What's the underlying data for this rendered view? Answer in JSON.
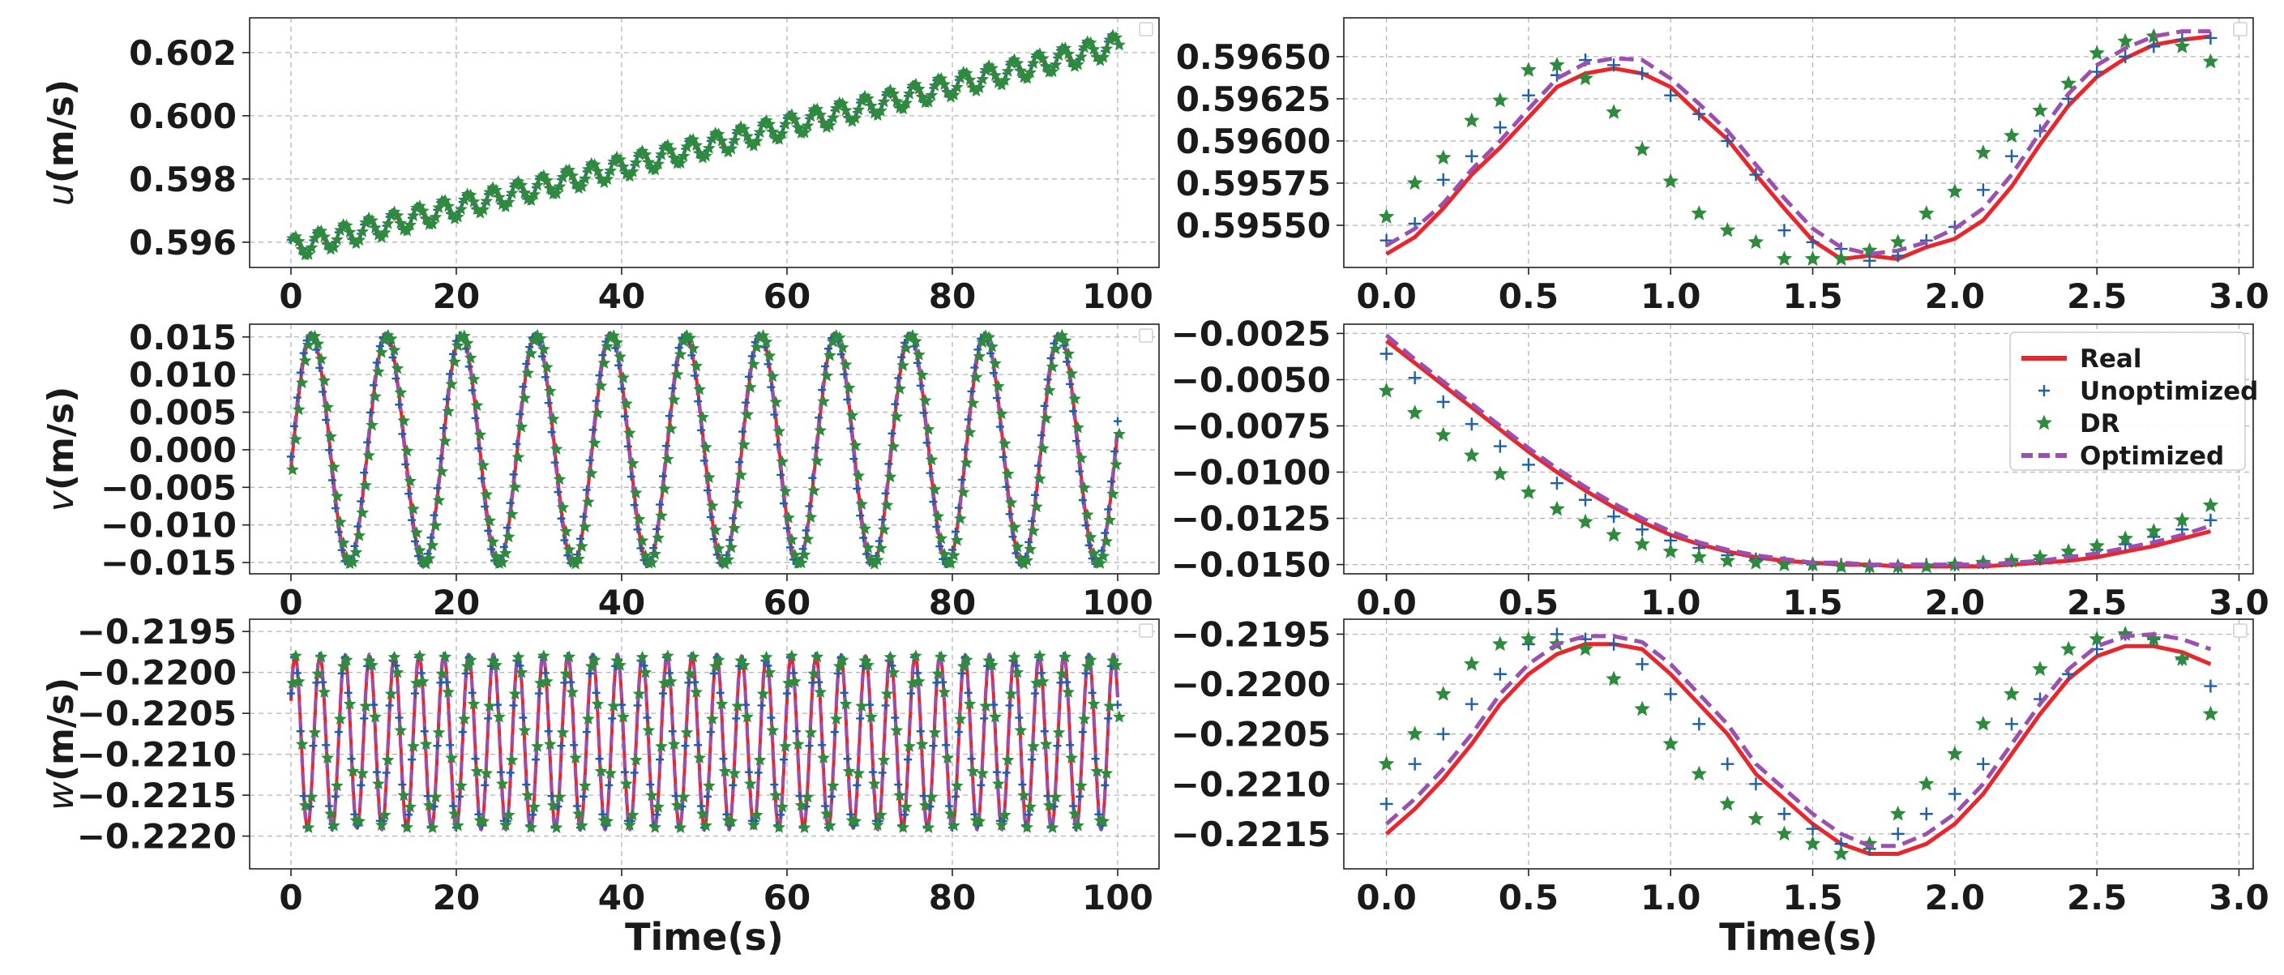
{
  "figure": {
    "xlabel_bottom": "Time(s)"
  },
  "colors": {
    "real": "#e8262c",
    "unoptimized": "#1f5fa8",
    "dr": "#2e8b3e",
    "optimized": "#9b4fb0",
    "grid": "#b5b5b5",
    "axis": "#222222"
  },
  "legend": {
    "entries": [
      "Real",
      "Unoptimized",
      "DR",
      "Optimized"
    ],
    "placement": "top-right of middle-right panel"
  },
  "chart_data": [
    {
      "id": "u_full",
      "type": "line",
      "ylabel_var": "u",
      "ylabel_unit": "(m/s)",
      "xlim": [
        -5,
        105
      ],
      "ylim": [
        0.5952,
        0.6031
      ],
      "xticks": [
        0,
        20,
        40,
        60,
        80,
        100
      ],
      "xtick_labels": [
        "0",
        "20",
        "40",
        "60",
        "80",
        "100"
      ],
      "yticks": [
        0.596,
        0.598,
        0.6,
        0.602
      ],
      "ytick_labels": [
        "0.596",
        "0.598",
        "0.600",
        "0.602"
      ],
      "signal": {
        "x_start": 0,
        "x_end": 100,
        "offset": 0.5958,
        "slope": 6.43e-05,
        "amp": 0.00035,
        "period": 3.0,
        "phase": 0.8
      },
      "series": [
        "Real",
        "Unoptimized",
        "DR",
        "Optimized"
      ]
    },
    {
      "id": "u_zoom",
      "type": "line",
      "ylabel_var": "",
      "ylabel_unit": "",
      "xlim": [
        -0.15,
        3.05
      ],
      "ylim": [
        0.59525,
        0.59673
      ],
      "xticks": [
        0.0,
        0.5,
        1.0,
        1.5,
        2.0,
        2.5,
        3.0
      ],
      "xtick_labels": [
        "0.0",
        "0.5",
        "1.0",
        "1.5",
        "2.0",
        "2.5",
        "3.0"
      ],
      "yticks": [
        0.5955,
        0.59575,
        0.596,
        0.59625,
        0.5965
      ],
      "ytick_labels": [
        "0.59550",
        "0.59575",
        "0.59600",
        "0.59625",
        "0.59650"
      ],
      "x": [
        0.0,
        0.1,
        0.2,
        0.3,
        0.4,
        0.5,
        0.6,
        0.7,
        0.8,
        0.9,
        1.0,
        1.1,
        1.2,
        1.3,
        1.4,
        1.5,
        1.6,
        1.7,
        1.8,
        1.9,
        2.0,
        2.1,
        2.2,
        2.3,
        2.4,
        2.5,
        2.6,
        2.7,
        2.8,
        2.9
      ],
      "series": [
        {
          "name": "Real",
          "values": [
            0.59533,
            0.59543,
            0.5956,
            0.5958,
            0.59596,
            0.59614,
            0.59632,
            0.5964,
            0.59643,
            0.5964,
            0.59632,
            0.59616,
            0.59601,
            0.5958,
            0.5956,
            0.59541,
            0.5953,
            0.59532,
            0.5953,
            0.59537,
            0.59542,
            0.59553,
            0.59573,
            0.59598,
            0.59621,
            0.59638,
            0.59649,
            0.59657,
            0.5966,
            0.59662
          ]
        },
        {
          "name": "Unoptimized",
          "values": [
            0.59541,
            0.59551,
            0.59577,
            0.59591,
            0.59608,
            0.59627,
            0.59639,
            0.59648,
            0.59645,
            0.5964,
            0.59627,
            0.59616,
            0.596,
            0.5958,
            0.59547,
            0.5954,
            0.59536,
            0.59529,
            0.59532,
            0.59541,
            0.59549,
            0.59571,
            0.59591,
            0.59606,
            0.59625,
            0.59641,
            0.5965,
            0.59656,
            0.5966,
            0.59661
          ]
        },
        {
          "name": "DR",
          "values": [
            0.59555,
            0.59575,
            0.5959,
            0.59612,
            0.59624,
            0.59642,
            0.59645,
            0.59637,
            0.59617,
            0.59595,
            0.59576,
            0.59557,
            0.59547,
            0.5954,
            0.5953,
            0.5953,
            0.5953,
            0.59535,
            0.5954,
            0.59557,
            0.5957,
            0.59593,
            0.59603,
            0.59618,
            0.59634,
            0.59652,
            0.59659,
            0.59662,
            0.59656,
            0.59647
          ]
        },
        {
          "name": "Optimized",
          "values": [
            0.59538,
            0.59548,
            0.59563,
            0.59583,
            0.596,
            0.59619,
            0.59637,
            0.59646,
            0.59649,
            0.59648,
            0.59637,
            0.59622,
            0.59606,
            0.59586,
            0.59566,
            0.59548,
            0.59537,
            0.59533,
            0.59535,
            0.5954,
            0.59548,
            0.5956,
            0.5958,
            0.59605,
            0.59628,
            0.59645,
            0.59655,
            0.59662,
            0.59665,
            0.59665
          ]
        }
      ]
    },
    {
      "id": "v_full",
      "type": "line",
      "ylabel_var": "v",
      "ylabel_unit": "(m/s)",
      "xlim": [
        -5,
        105
      ],
      "ylim": [
        -0.0165,
        0.0167
      ],
      "xticks": [
        0,
        20,
        40,
        60,
        80,
        100
      ],
      "xtick_labels": [
        "0",
        "20",
        "40",
        "60",
        "80",
        "100"
      ],
      "yticks": [
        -0.015,
        -0.01,
        -0.005,
        0.0,
        0.005,
        0.01,
        0.015
      ],
      "ytick_labels": [
        "−0.015",
        "−0.010",
        "−0.005",
        "0.000",
        "0.005",
        "0.010",
        "0.015"
      ],
      "signal": {
        "x_start": 0,
        "x_end": 100,
        "offset": 0,
        "slope": 0,
        "amp": 0.0152,
        "period": 9.05,
        "phase": -0.16
      },
      "series": [
        "Real",
        "Unoptimized",
        "DR",
        "Optimized"
      ]
    },
    {
      "id": "v_zoom",
      "type": "line",
      "ylabel_var": "",
      "ylabel_unit": "",
      "xlim": [
        -0.15,
        3.05
      ],
      "ylim": [
        -0.0155,
        -0.002
      ],
      "xticks": [
        0.0,
        0.5,
        1.0,
        1.5,
        2.0,
        2.5,
        3.0
      ],
      "xtick_labels": [
        "0.0",
        "0.5",
        "1.0",
        "1.5",
        "2.0",
        "2.5",
        "3.0"
      ],
      "yticks": [
        -0.0025,
        -0.005,
        -0.0075,
        -0.01,
        -0.0125,
        -0.015
      ],
      "ytick_labels": [
        "−0.0025",
        "−0.0050",
        "−0.0075",
        "−0.0100",
        "−0.0125",
        "−0.0150"
      ],
      "x": [
        0.0,
        0.1,
        0.2,
        0.3,
        0.4,
        0.5,
        0.6,
        0.7,
        0.8,
        0.9,
        1.0,
        1.1,
        1.2,
        1.3,
        1.4,
        1.5,
        1.6,
        1.7,
        1.8,
        1.9,
        2.0,
        2.1,
        2.2,
        2.3,
        2.4,
        2.5,
        2.6,
        2.7,
        2.8,
        2.9
      ],
      "series": [
        {
          "name": "Real",
          "values": [
            -0.0029,
            -0.0041,
            -0.0053,
            -0.0065,
            -0.0077,
            -0.0089,
            -0.01,
            -0.011,
            -0.0119,
            -0.0127,
            -0.0134,
            -0.0139,
            -0.0143,
            -0.0146,
            -0.0148,
            -0.0149,
            -0.015,
            -0.015,
            -0.0151,
            -0.0151,
            -0.0151,
            -0.0151,
            -0.015,
            -0.0149,
            -0.0148,
            -0.0146,
            -0.0143,
            -0.014,
            -0.0136,
            -0.0132
          ]
        },
        {
          "name": "Unoptimized",
          "values": [
            -0.0036,
            -0.0049,
            -0.0062,
            -0.0074,
            -0.0086,
            -0.0096,
            -0.0106,
            -0.0115,
            -0.0124,
            -0.0131,
            -0.0137,
            -0.0141,
            -0.0145,
            -0.0147,
            -0.0149,
            -0.015,
            -0.015,
            -0.0151,
            -0.0151,
            -0.015,
            -0.015,
            -0.0149,
            -0.0148,
            -0.0147,
            -0.0145,
            -0.0142,
            -0.0139,
            -0.0135,
            -0.0131,
            -0.0126
          ]
        },
        {
          "name": "DR",
          "values": [
            -0.0056,
            -0.0068,
            -0.008,
            -0.0091,
            -0.0101,
            -0.0111,
            -0.012,
            -0.0127,
            -0.0134,
            -0.0139,
            -0.0143,
            -0.0146,
            -0.0148,
            -0.0149,
            -0.015,
            -0.015,
            -0.0151,
            -0.0151,
            -0.0151,
            -0.0151,
            -0.015,
            -0.0149,
            -0.0148,
            -0.0146,
            -0.0143,
            -0.014,
            -0.0136,
            -0.0132,
            -0.0126,
            -0.0118
          ]
        },
        {
          "name": "Optimized",
          "values": [
            -0.0026,
            -0.0039,
            -0.0051,
            -0.0063,
            -0.0075,
            -0.0087,
            -0.0098,
            -0.0108,
            -0.0117,
            -0.0125,
            -0.0132,
            -0.0138,
            -0.0142,
            -0.0145,
            -0.0147,
            -0.0149,
            -0.0149,
            -0.015,
            -0.015,
            -0.015,
            -0.015,
            -0.015,
            -0.0149,
            -0.0148,
            -0.0146,
            -0.0144,
            -0.0141,
            -0.0138,
            -0.0134,
            -0.0129
          ]
        }
      ]
    },
    {
      "id": "w_full",
      "type": "line",
      "ylabel_var": "w",
      "ylabel_unit": "(m/s)",
      "xlim": [
        -5,
        105
      ],
      "ylim": [
        -0.2224,
        -0.21935
      ],
      "xticks": [
        0,
        20,
        40,
        60,
        80,
        100
      ],
      "xtick_labels": [
        "0",
        "20",
        "40",
        "60",
        "80",
        "100"
      ],
      "yticks": [
        -0.2195,
        -0.22,
        -0.2205,
        -0.221,
        -0.2215,
        -0.222
      ],
      "ytick_labels": [
        "−0.2195",
        "−0.2200",
        "−0.2205",
        "−0.2210",
        "−0.2215",
        "−0.2220"
      ],
      "signal": {
        "x_start": 0,
        "x_end": 100,
        "offset": -0.22085,
        "slope": 0,
        "amp": 0.00105,
        "period": 3.0,
        "phase": 0.5
      },
      "series": [
        "Real",
        "Unoptimized",
        "DR",
        "Optimized"
      ]
    },
    {
      "id": "w_zoom",
      "type": "line",
      "ylabel_var": "",
      "ylabel_unit": "",
      "xlim": [
        -0.15,
        3.05
      ],
      "ylim": [
        -0.22185,
        -0.21935
      ],
      "xticks": [
        0.0,
        0.5,
        1.0,
        1.5,
        2.0,
        2.5,
        3.0
      ],
      "xtick_labels": [
        "0.0",
        "0.5",
        "1.0",
        "1.5",
        "2.0",
        "2.5",
        "3.0"
      ],
      "yticks": [
        -0.2195,
        -0.22,
        -0.2205,
        -0.221,
        -0.2215
      ],
      "ytick_labels": [
        "−0.2195",
        "−0.2200",
        "−0.2205",
        "−0.2210",
        "−0.2215"
      ],
      "x": [
        0.0,
        0.1,
        0.2,
        0.3,
        0.4,
        0.5,
        0.6,
        0.7,
        0.8,
        0.9,
        1.0,
        1.1,
        1.2,
        1.3,
        1.4,
        1.5,
        1.6,
        1.7,
        1.8,
        1.9,
        2.0,
        2.1,
        2.2,
        2.3,
        2.4,
        2.5,
        2.6,
        2.7,
        2.8,
        2.9
      ],
      "series": [
        {
          "name": "Real",
          "values": [
            -0.2215,
            -0.22125,
            -0.22095,
            -0.2206,
            -0.2202,
            -0.2199,
            -0.2197,
            -0.2196,
            -0.2196,
            -0.21965,
            -0.2199,
            -0.2202,
            -0.2205,
            -0.2209,
            -0.22115,
            -0.2214,
            -0.2216,
            -0.2217,
            -0.2217,
            -0.2216,
            -0.2214,
            -0.2211,
            -0.2207,
            -0.2203,
            -0.21995,
            -0.21972,
            -0.21962,
            -0.21962,
            -0.21968,
            -0.2198
          ]
        },
        {
          "name": "Unoptimized",
          "values": [
            -0.2212,
            -0.2208,
            -0.2205,
            -0.2202,
            -0.2199,
            -0.2196,
            -0.2195,
            -0.21955,
            -0.2196,
            -0.2198,
            -0.2201,
            -0.2204,
            -0.2208,
            -0.221,
            -0.2213,
            -0.22145,
            -0.2216,
            -0.22165,
            -0.2215,
            -0.2213,
            -0.2211,
            -0.2208,
            -0.2204,
            -0.22015,
            -0.2199,
            -0.21965,
            -0.2195,
            -0.21955,
            -0.21975,
            -0.22002
          ]
        },
        {
          "name": "DR",
          "values": [
            -0.2208,
            -0.2205,
            -0.2201,
            -0.2198,
            -0.2196,
            -0.21955,
            -0.2196,
            -0.21965,
            -0.21995,
            -0.22025,
            -0.2206,
            -0.2209,
            -0.2212,
            -0.22135,
            -0.2215,
            -0.2216,
            -0.2217,
            -0.2216,
            -0.2213,
            -0.221,
            -0.2207,
            -0.2204,
            -0.2201,
            -0.21985,
            -0.21965,
            -0.21955,
            -0.2195,
            -0.21955,
            -0.21975,
            -0.2203
          ]
        },
        {
          "name": "Optimized",
          "values": [
            -0.2214,
            -0.22115,
            -0.22085,
            -0.2205,
            -0.2201,
            -0.2198,
            -0.2196,
            -0.21952,
            -0.21952,
            -0.21958,
            -0.2198,
            -0.2201,
            -0.2204,
            -0.2208,
            -0.22105,
            -0.2213,
            -0.2215,
            -0.22162,
            -0.22162,
            -0.2215,
            -0.2213,
            -0.221,
            -0.2206,
            -0.2202,
            -0.21985,
            -0.21962,
            -0.21952,
            -0.2195,
            -0.21955,
            -0.21965
          ]
        }
      ]
    }
  ]
}
